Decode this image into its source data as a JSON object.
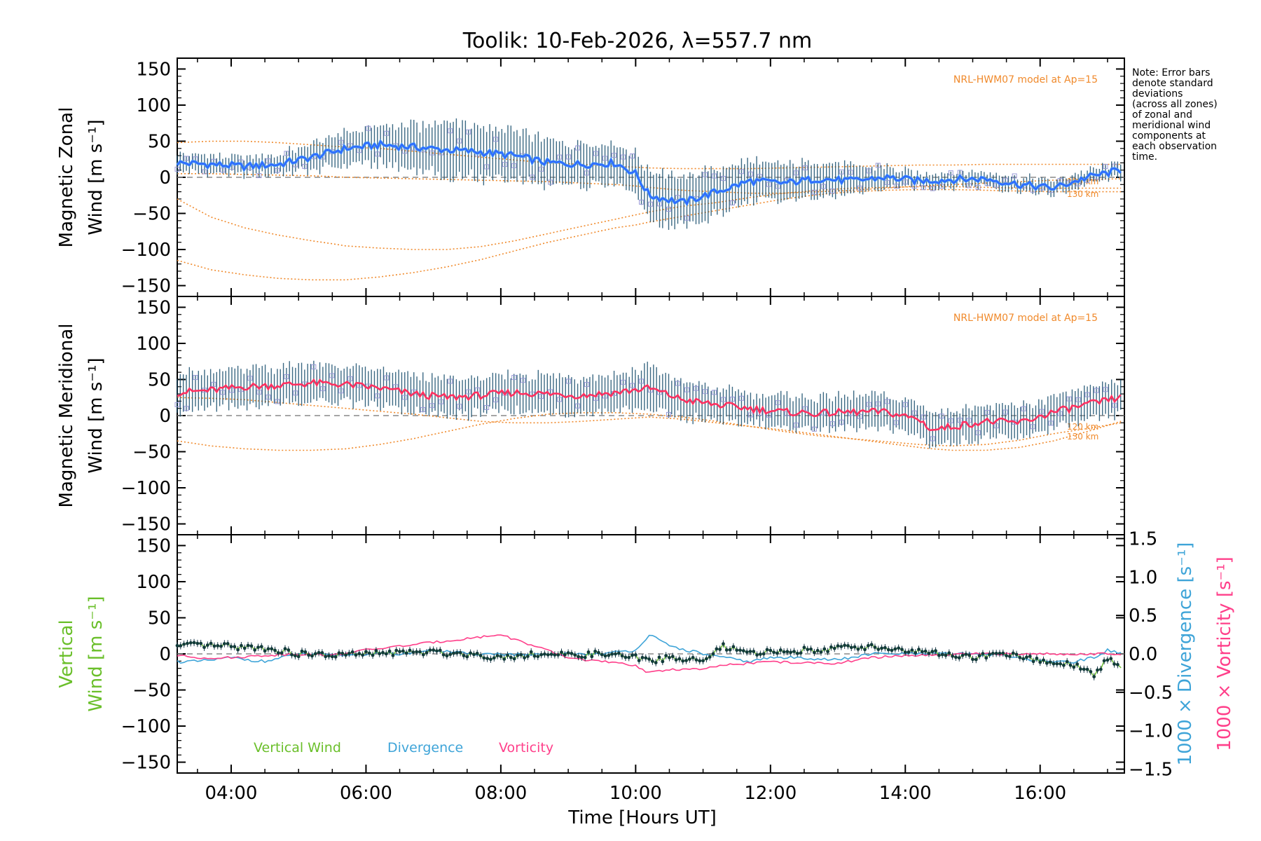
{
  "title_main": "Toolik: 10-Feb-2026, ",
  "title_lambda": "λ=557.7 nm",
  "note": [
    "Note: Error bars",
    "denote standard",
    "deviations",
    "(across all zones)",
    "of zonal and",
    "meridional wind",
    "components at",
    "each observation",
    "time."
  ],
  "model_label": "NRL-HWM07 model at Ap=15",
  "km_labels": [
    "120 km",
    "130 km"
  ],
  "x_axis": {
    "label": "Time [Hours UT]",
    "range_hours": [
      3.2,
      17.25
    ],
    "ticks": [
      "04:00",
      "06:00",
      "08:00",
      "10:00",
      "12:00",
      "14:00",
      "16:00"
    ],
    "tick_hours": [
      4,
      6,
      8,
      10,
      12,
      14,
      16
    ]
  },
  "y_ticks": [
    "150",
    "100",
    "50",
    "0",
    "−100",
    "−150"
  ],
  "y_tick_values": [
    150,
    100,
    50,
    0,
    -100,
    -150
  ],
  "y_tick_m50": "−50",
  "right_ticks": [
    "1.5",
    "1.0",
    "0.5",
    "0.0",
    "−0.5",
    "−1.0",
    "−1.5"
  ],
  "right_tick_values": [
    1.5,
    1.0,
    0.5,
    0.0,
    -0.5,
    -1.0,
    -1.5
  ],
  "panels": [
    {
      "ylabel_line1": "Magnetic Zonal",
      "ylabel_line2": "Wind [m s⁻¹]"
    },
    {
      "ylabel_line1": "Magnetic Meridional",
      "ylabel_line2": "Wind [m s⁻¹]"
    },
    {
      "ylabel_line1": "Vertical",
      "ylabel_line2": "Wind [m s⁻¹]"
    }
  ],
  "right_labels": {
    "divergence": "1000 × Divergence [s⁻¹]",
    "vorticity": "1000 × Vorticity [s⁻¹]"
  },
  "legend": {
    "vertical": "Vertical Wind",
    "divergence": "Divergence",
    "vorticity": "Vorticity"
  },
  "colors": {
    "zonal": "#2f6bff",
    "zonal_light": "#5ab0f0",
    "meridional": "#ff3060",
    "model": "#f08a2c",
    "vertical": "#6abf2a",
    "divergence": "#3ea4d8",
    "vorticity": "#ff3f8a",
    "errbar": "#1a4f6e",
    "scatter": "#9a9ad8"
  },
  "chart_data": [
    {
      "type": "line",
      "title": "Toolik: 10-Feb-2026, λ=557.7 nm",
      "panel": "Magnetic Zonal Wind",
      "ylabel": "Magnetic Zonal Wind [m s⁻¹]",
      "xlabel": "Time [Hours UT]",
      "ylim": [
        -165,
        165
      ],
      "x_hours": [
        3.2,
        3.7,
        4.2,
        4.7,
        5.2,
        5.5,
        5.7,
        6.2,
        6.7,
        7.2,
        7.7,
        8.2,
        8.7,
        9.2,
        9.7,
        10.0,
        10.2,
        10.7,
        11.2,
        11.7,
        12.2,
        12.7,
        13.2,
        13.7,
        14.2,
        14.7,
        15.2,
        15.7,
        16.2,
        16.7,
        17.2
      ],
      "series": [
        {
          "name": "Zonal wind",
          "values": [
            20,
            18,
            15,
            18,
            28,
            35,
            40,
            45,
            42,
            38,
            35,
            30,
            20,
            18,
            20,
            5,
            -25,
            -35,
            -20,
            -5,
            -8,
            -2,
            -5,
            0,
            -5,
            -3,
            -2,
            -10,
            -15,
            0,
            10
          ]
        },
        {
          "name": "Zonal error bar half-width",
          "values": [
            12,
            12,
            12,
            14,
            18,
            20,
            22,
            25,
            30,
            35,
            35,
            33,
            30,
            28,
            25,
            30,
            35,
            35,
            32,
            28,
            25,
            25,
            20,
            15,
            10,
            10,
            10,
            10,
            10,
            10,
            10
          ]
        },
        {
          "name": "HWM07 model a",
          "values": [
            48,
            50,
            50,
            48,
            45,
            43,
            42,
            40,
            36,
            32,
            28,
            24,
            20,
            18,
            15,
            14,
            13,
            12,
            12,
            12,
            13,
            14,
            15,
            16,
            17,
            17,
            18,
            18,
            18,
            18,
            18
          ]
        },
        {
          "name": "HWM07 model b",
          "values": [
            5,
            5,
            4,
            3,
            2,
            1,
            0,
            -1,
            -2,
            -3,
            -4,
            -5,
            -6,
            -8,
            -10,
            -12,
            -14,
            -18,
            -20,
            -22,
            -22,
            -20,
            -18,
            -15,
            -12,
            -10,
            -8,
            -6,
            -4,
            -3,
            -2
          ]
        },
        {
          "name": "HWM07 model 120 km",
          "values": [
            -30,
            -55,
            -70,
            -80,
            -88,
            -92,
            -95,
            -98,
            -100,
            -100,
            -96,
            -88,
            -78,
            -68,
            -58,
            -52,
            -48,
            -40,
            -35,
            -28,
            -22,
            -18,
            -15,
            -14,
            -13,
            -13,
            -14,
            -15,
            -15,
            -15,
            -15
          ]
        },
        {
          "name": "HWM07 model 130 km",
          "values": [
            -115,
            -128,
            -135,
            -140,
            -142,
            -142,
            -142,
            -138,
            -132,
            -124,
            -114,
            -102,
            -90,
            -80,
            -70,
            -66,
            -62,
            -54,
            -46,
            -38,
            -30,
            -24,
            -20,
            -18,
            -17,
            -17,
            -18,
            -19,
            -20,
            -20,
            -20
          ]
        }
      ]
    },
    {
      "type": "line",
      "panel": "Magnetic Meridional Wind",
      "ylabel": "Magnetic Meridional Wind [m s⁻¹]",
      "xlabel": "Time [Hours UT]",
      "ylim": [
        -165,
        165
      ],
      "x_hours": [
        3.2,
        3.7,
        4.2,
        4.7,
        5.2,
        5.7,
        6.2,
        6.7,
        7.2,
        7.7,
        8.2,
        8.7,
        9.2,
        9.7,
        10.2,
        10.7,
        11.2,
        11.7,
        12.2,
        12.7,
        13.2,
        13.7,
        14.2,
        14.4,
        14.7,
        15.2,
        15.7,
        16.2,
        16.7,
        17.2
      ],
      "series": [
        {
          "name": "Meridional wind",
          "values": [
            32,
            35,
            40,
            42,
            45,
            43,
            38,
            30,
            25,
            28,
            32,
            30,
            28,
            32,
            38,
            22,
            15,
            10,
            5,
            3,
            5,
            5,
            -5,
            -20,
            -15,
            -8,
            -10,
            5,
            15,
            25
          ]
        },
        {
          "name": "Meridional error bar half-width",
          "values": [
            25,
            25,
            25,
            25,
            25,
            25,
            25,
            25,
            25,
            25,
            25,
            25,
            25,
            25,
            28,
            25,
            22,
            22,
            22,
            22,
            22,
            22,
            22,
            22,
            22,
            22,
            22,
            22,
            22,
            22
          ]
        },
        {
          "name": "HWM07 model a",
          "values": [
            -35,
            -42,
            -46,
            -48,
            -48,
            -46,
            -40,
            -32,
            -22,
            -12,
            -4,
            2,
            4,
            4,
            2,
            -2,
            -8,
            -15,
            -22,
            -28,
            -32,
            -36,
            -40,
            -41,
            -42,
            -40,
            -34,
            -25,
            -18,
            -10
          ]
        },
        {
          "name": "HWM07 model b",
          "values": [
            25,
            24,
            22,
            18,
            14,
            10,
            6,
            2,
            -3,
            -8,
            -10,
            -10,
            -8,
            -5,
            -2,
            -5,
            -10,
            -15,
            -20,
            -26,
            -32,
            -38,
            -44,
            -46,
            -48,
            -48,
            -44,
            -35,
            -22,
            -8
          ]
        }
      ]
    },
    {
      "type": "line",
      "panel": "Vertical Wind / Divergence / Vorticity",
      "ylabel": "Vertical Wind [m s⁻¹]",
      "y2label": "1000 × Divergence [s⁻¹] / 1000 × Vorticity [s⁻¹]",
      "xlabel": "Time [Hours UT]",
      "ylim": [
        -165,
        165
      ],
      "y2lim": [
        -1.55,
        1.55
      ],
      "x_hours": [
        3.2,
        3.5,
        4.0,
        4.5,
        5.0,
        5.5,
        6.0,
        6.5,
        7.0,
        7.5,
        8.0,
        8.5,
        9.0,
        9.5,
        10.0,
        10.2,
        10.5,
        11.0,
        11.3,
        11.7,
        12.0,
        12.5,
        13.0,
        13.5,
        14.0,
        14.5,
        15.0,
        15.5,
        16.0,
        16.5,
        16.8,
        17.0,
        17.2
      ],
      "series": [
        {
          "name": "Vertical Wind",
          "values": [
            10,
            12,
            10,
            8,
            0,
            -2,
            0,
            2,
            2,
            0,
            -5,
            0,
            -2,
            0,
            -5,
            -10,
            -5,
            -10,
            10,
            0,
            3,
            5,
            8,
            10,
            5,
            0,
            -5,
            0,
            -10,
            -15,
            -30,
            -5,
            -20
          ]
        },
        {
          "name": "Divergence",
          "values": [
            -0.1,
            -0.1,
            -0.05,
            -0.1,
            0.0,
            -0.02,
            0.0,
            0.0,
            0.05,
            0.0,
            0.0,
            -0.02,
            0.0,
            0.0,
            0.05,
            0.25,
            0.1,
            0.0,
            -0.05,
            -0.1,
            -0.05,
            -0.05,
            -0.08,
            0.0,
            0.0,
            0.0,
            0.0,
            -0.02,
            -0.1,
            -0.1,
            -0.05,
            0.05,
            0.0
          ]
        },
        {
          "name": "Vorticity",
          "values": [
            -0.02,
            -0.05,
            -0.05,
            -0.02,
            0.0,
            -0.02,
            0.05,
            0.1,
            0.15,
            0.2,
            0.25,
            0.1,
            -0.05,
            -0.1,
            -0.15,
            -0.25,
            -0.2,
            -0.2,
            -0.15,
            -0.12,
            -0.1,
            -0.12,
            -0.12,
            -0.05,
            -0.02,
            -0.02,
            0.0,
            0.0,
            0.0,
            0.0,
            0.0,
            0.0,
            0.0
          ]
        }
      ]
    }
  ]
}
